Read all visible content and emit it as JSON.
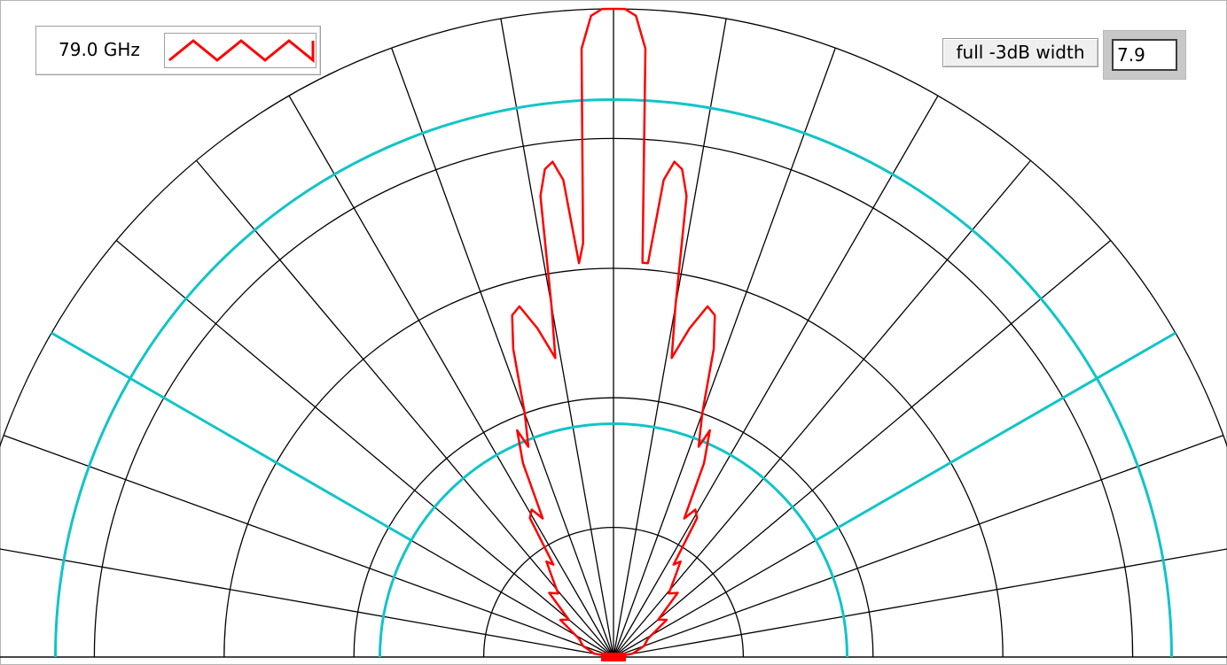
{
  "legend": {
    "label": "79.0 GHz",
    "series_color": "#ff0000"
  },
  "width_control": {
    "button_label": "full -3dB width",
    "value": "7.9"
  },
  "colors": {
    "grid": "#000000",
    "reference": "#11c4c8",
    "pattern": "#ff0000"
  },
  "chart_data": {
    "type": "polar-half",
    "grid": true,
    "radial_rings": 5,
    "angular_step_deg": 10,
    "angle_range_deg": [
      -90,
      90
    ],
    "reference_circles": [
      0.86,
      0.36
    ],
    "reference_lines_deg": [
      -60,
      60
    ],
    "series": [
      {
        "color": "#ff0000",
        "points": [
          [
            -90,
            0.0
          ],
          [
            -80,
            0.03
          ],
          [
            -70,
            0.05
          ],
          [
            -62,
            0.06
          ],
          [
            -55,
            0.1
          ],
          [
            -50,
            0.09
          ],
          [
            -45,
            0.14
          ],
          [
            -41,
            0.13
          ],
          [
            -37,
            0.16
          ],
          [
            -35,
            0.18
          ],
          [
            -33,
            0.17
          ],
          [
            -31,
            0.25
          ],
          [
            -29,
            0.26
          ],
          [
            -27,
            0.24
          ],
          [
            -25,
            0.33
          ],
          [
            -23,
            0.38
          ],
          [
            -22,
            0.35
          ],
          [
            -20,
            0.4
          ],
          [
            -18,
            0.5
          ],
          [
            -16.5,
            0.55
          ],
          [
            -15,
            0.56
          ],
          [
            -13,
            0.52
          ],
          [
            -11,
            0.47
          ],
          [
            -10,
            0.55
          ],
          [
            -9,
            0.72
          ],
          [
            -8,
            0.76
          ],
          [
            -7,
            0.77
          ],
          [
            -6,
            0.74
          ],
          [
            -5,
            0.61
          ],
          [
            -4.2,
            0.64
          ],
          [
            -3,
            0.94
          ],
          [
            -2,
            0.99
          ],
          [
            -1,
            1.0
          ],
          [
            0,
            1.0
          ],
          [
            1,
            1.0
          ],
          [
            2,
            0.99
          ],
          [
            3,
            0.94
          ],
          [
            4.2,
            0.61
          ],
          [
            5,
            0.61
          ],
          [
            6,
            0.74
          ],
          [
            7,
            0.77
          ],
          [
            8,
            0.76
          ],
          [
            9,
            0.72
          ],
          [
            10,
            0.55
          ],
          [
            11,
            0.47
          ],
          [
            13,
            0.52
          ],
          [
            15,
            0.56
          ],
          [
            16.5,
            0.55
          ],
          [
            18,
            0.5
          ],
          [
            20,
            0.4
          ],
          [
            22,
            0.35
          ],
          [
            23,
            0.38
          ],
          [
            25,
            0.33
          ],
          [
            27,
            0.24
          ],
          [
            29,
            0.26
          ],
          [
            31,
            0.25
          ],
          [
            33,
            0.17
          ],
          [
            35,
            0.18
          ],
          [
            37,
            0.16
          ],
          [
            41,
            0.13
          ],
          [
            45,
            0.14
          ],
          [
            50,
            0.09
          ],
          [
            55,
            0.1
          ],
          [
            62,
            0.06
          ],
          [
            70,
            0.05
          ],
          [
            80,
            0.03
          ],
          [
            90,
            0.0
          ]
        ]
      }
    ]
  }
}
